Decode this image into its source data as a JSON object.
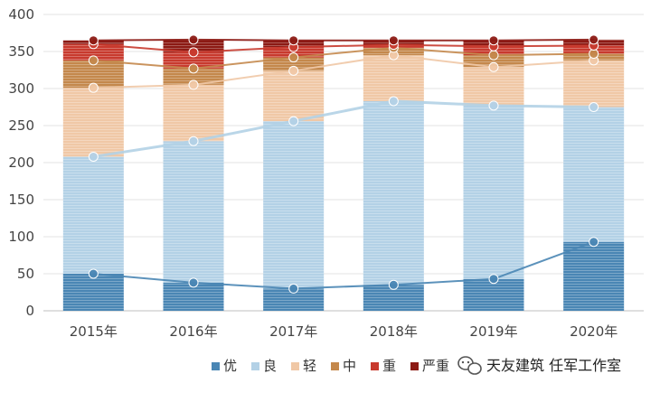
{
  "chart_data": {
    "type": "bar",
    "stacked": true,
    "categories": [
      "2015年",
      "2016年",
      "2017年",
      "2018年",
      "2019年",
      "2020年"
    ],
    "ylim": [
      0,
      400
    ],
    "yticks": [
      0,
      50,
      100,
      150,
      200,
      250,
      300,
      350,
      400
    ],
    "grid": true,
    "legend_position": "bottom-right",
    "series": [
      {
        "name": "优",
        "color": "#4a86b4",
        "values": [
          50,
          38,
          30,
          35,
          43,
          93
        ]
      },
      {
        "name": "良",
        "color": "#b3d1e6",
        "values": [
          158,
          191,
          226,
          248,
          234,
          182
        ]
      },
      {
        "name": "轻",
        "color": "#f0c8a6",
        "values": [
          93,
          76,
          68,
          62,
          52,
          63
        ]
      },
      {
        "name": "中",
        "color": "#c4884c",
        "values": [
          37,
          22,
          18,
          10,
          16,
          9
        ]
      },
      {
        "name": "重",
        "color": "#c83a2e",
        "values": [
          22,
          22,
          14,
          4,
          12,
          11
        ]
      },
      {
        "name": "严重",
        "color": "#8c1a14",
        "values": [
          5,
          17,
          9,
          6,
          8,
          8
        ]
      }
    ],
    "cumulative_lines": [
      {
        "of": "优",
        "values": [
          50,
          38,
          30,
          35,
          43,
          93
        ]
      },
      {
        "of": "良",
        "values": [
          208,
          229,
          256,
          283,
          277,
          275
        ]
      },
      {
        "of": "轻",
        "values": [
          301,
          305,
          324,
          345,
          329,
          338
        ]
      },
      {
        "of": "中",
        "values": [
          338,
          327,
          342,
          355,
          345,
          347
        ]
      },
      {
        "of": "重",
        "values": [
          360,
          349,
          356,
          359,
          357,
          358
        ]
      },
      {
        "of": "严重",
        "values": [
          365,
          366,
          365,
          365,
          365,
          366
        ]
      }
    ]
  },
  "watermark": {
    "text": "天友建筑 任军工作室",
    "icon": "wechat-icon"
  }
}
